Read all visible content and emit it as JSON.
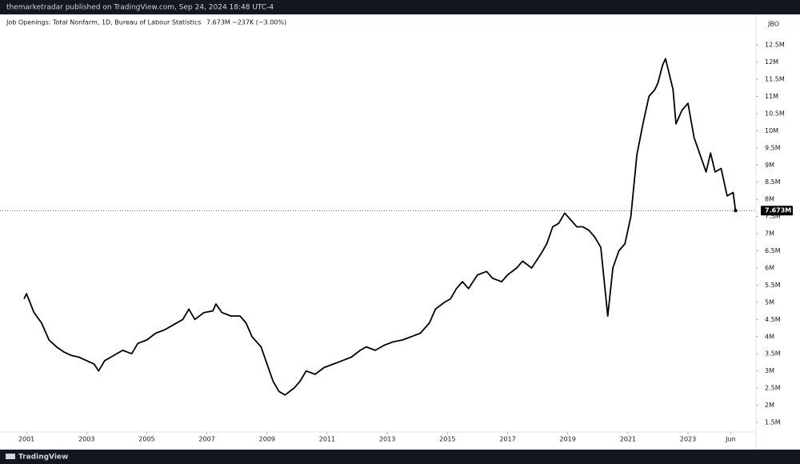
{
  "header": "themarketradar published on TradingView.com, Sep 24, 2024 18:48 UTC-4",
  "footer": "TradingView",
  "chart_data": {
    "type": "line",
    "symbol": "JBO",
    "legend_value": "7.673M",
    "legend_change": "−237K (−3.00%)",
    "last_price": {
      "value": 7673000,
      "label": "7.673M"
    },
    "x": [
      2000.92,
      2001.0,
      2001.25,
      2001.5,
      2001.75,
      2002.0,
      2002.25,
      2002.5,
      2002.75,
      2003.0,
      2003.25,
      2003.4,
      2003.6,
      2003.9,
      2004.2,
      2004.5,
      2004.7,
      2005.0,
      2005.3,
      2005.6,
      2005.9,
      2006.2,
      2006.4,
      2006.6,
      2006.9,
      2007.2,
      2007.3,
      2007.5,
      2007.8,
      2008.1,
      2008.3,
      2008.5,
      2008.8,
      2009.0,
      2009.2,
      2009.4,
      2009.6,
      2009.9,
      2010.1,
      2010.3,
      2010.6,
      2010.9,
      2011.2,
      2011.5,
      2011.8,
      2012.1,
      2012.3,
      2012.6,
      2012.9,
      2013.2,
      2013.5,
      2013.8,
      2014.1,
      2014.4,
      2014.6,
      2014.9,
      2015.1,
      2015.3,
      2015.5,
      2015.7,
      2016.0,
      2016.3,
      2016.5,
      2016.8,
      2017.0,
      2017.3,
      2017.5,
      2017.8,
      2018.1,
      2018.3,
      2018.5,
      2018.7,
      2018.9,
      2019.1,
      2019.3,
      2019.5,
      2019.7,
      2019.9,
      2020.1,
      2020.33,
      2020.5,
      2020.7,
      2020.9,
      2021.1,
      2021.3,
      2021.5,
      2021.7,
      2021.9,
      2022.0,
      2022.15,
      2022.25,
      2022.5,
      2022.6,
      2022.8,
      2023.0,
      2023.2,
      2023.4,
      2023.6,
      2023.75,
      2023.9,
      2024.1,
      2024.3,
      2024.5,
      2024.58
    ],
    "series": [
      {
        "name": "Job Openings: Total Nonfarm, 1D, Bureau of Labour Statistics",
        "color": "#000000",
        "values": [
          5100000,
          5250000,
          4700000,
          4400000,
          3900000,
          3700000,
          3550000,
          3450000,
          3400000,
          3300000,
          3200000,
          3000000,
          3300000,
          3450000,
          3600000,
          3500000,
          3800000,
          3900000,
          4100000,
          4200000,
          4350000,
          4500000,
          4800000,
          4500000,
          4700000,
          4750000,
          4950000,
          4700000,
          4600000,
          4600000,
          4400000,
          4000000,
          3700000,
          3200000,
          2700000,
          2400000,
          2300000,
          2500000,
          2700000,
          3000000,
          2900000,
          3100000,
          3200000,
          3300000,
          3400000,
          3600000,
          3700000,
          3600000,
          3750000,
          3850000,
          3900000,
          4000000,
          4100000,
          4400000,
          4800000,
          5000000,
          5100000,
          5400000,
          5600000,
          5400000,
          5800000,
          5900000,
          5700000,
          5600000,
          5800000,
          6000000,
          6200000,
          6000000,
          6400000,
          6700000,
          7200000,
          7300000,
          7600000,
          7400000,
          7200000,
          7200000,
          7100000,
          6900000,
          6600000,
          4600000,
          6000000,
          6500000,
          6700000,
          7500000,
          9300000,
          10200000,
          11000000,
          11200000,
          11400000,
          11900000,
          12100000,
          11200000,
          10200000,
          10600000,
          10800000,
          9800000,
          9300000,
          8800000,
          9350000,
          8800000,
          8900000,
          8100000,
          8200000,
          7673000
        ]
      }
    ],
    "xlim": [
      2000.12,
      2025.26
    ],
    "xticks": [
      2001,
      2003,
      2005,
      2007,
      2009,
      2011,
      2013,
      2015,
      2017,
      2019,
      2021,
      2023,
      {
        "value": 2024.42,
        "label": "Jun"
      }
    ],
    "ylim": [
      1220000,
      13390000
    ],
    "yticks": [
      {
        "value": 1500000,
        "label": "1.5M"
      },
      {
        "value": 2000000,
        "label": "2M"
      },
      {
        "value": 2500000,
        "label": "2.5M"
      },
      {
        "value": 3000000,
        "label": "3M"
      },
      {
        "value": 3500000,
        "label": "3.5M"
      },
      {
        "value": 4000000,
        "label": "4M"
      },
      {
        "value": 4500000,
        "label": "4.5M"
      },
      {
        "value": 5000000,
        "label": "5M"
      },
      {
        "value": 5500000,
        "label": "5.5M"
      },
      {
        "value": 6000000,
        "label": "6M"
      },
      {
        "value": 6500000,
        "label": "6.5M"
      },
      {
        "value": 7000000,
        "label": "7M"
      },
      {
        "value": 7500000,
        "label": "7.5M"
      },
      {
        "value": 8000000,
        "label": "8M"
      },
      {
        "value": 8500000,
        "label": "8.5M"
      },
      {
        "value": 9000000,
        "label": "9M"
      },
      {
        "value": 9500000,
        "label": "9.5M"
      },
      {
        "value": 10000000,
        "label": "10M"
      },
      {
        "value": 10500000,
        "label": "10.5M"
      },
      {
        "value": 11000000,
        "label": "11M"
      },
      {
        "value": 11500000,
        "label": "11.5M"
      },
      {
        "value": 12000000,
        "label": "12M"
      },
      {
        "value": 12500000,
        "label": "12.5M"
      }
    ]
  }
}
